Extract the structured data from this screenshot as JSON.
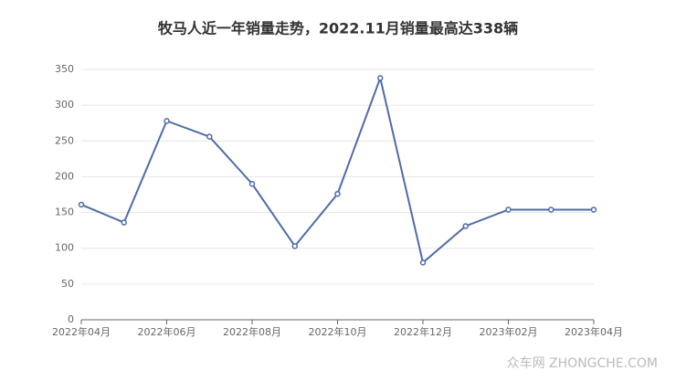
{
  "chart_data": {
    "type": "line",
    "title": "牧马人近一年销量走势，2022.11月销量最高达338辆",
    "categories": [
      "2022年04月",
      null,
      "2022年06月",
      null,
      "2022年08月",
      null,
      "2022年10月",
      null,
      "2022年12月",
      null,
      "2023年02月",
      null,
      "2023年04月"
    ],
    "series": [
      {
        "color": "#4f6baa",
        "values": [
          161,
          136,
          278,
          256,
          190,
          103,
          176,
          338,
          80,
          131,
          154,
          154,
          154
        ]
      }
    ],
    "ylim": [
      0,
      350
    ],
    "yticks": [
      0,
      50,
      100,
      150,
      200,
      250,
      300,
      350
    ],
    "grid": true
  },
  "watermark": "众车网 ZHONGCHE.COM"
}
